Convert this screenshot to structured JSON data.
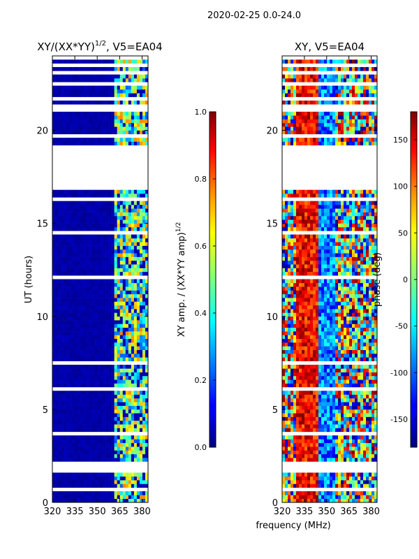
{
  "chart_data": {
    "suptitle": "2020-02-25 0.0-24.0",
    "xlabel": "frequency (MHz)",
    "panels": [
      {
        "type": "heatmap",
        "title": "XY/(XX*YY)",
        "title_sup": "1/2",
        "title_suffix": ", V5=EA04",
        "ylabel": "UT (hours)",
        "xlim": [
          320,
          384
        ],
        "ylim": [
          0,
          24
        ],
        "xticks": [
          "320",
          "335",
          "350",
          "365",
          "380"
        ],
        "yticks": [
          "0",
          "5",
          "10",
          "15",
          "20"
        ],
        "colormap": "jet",
        "colorbar": {
          "label": "XY amp. / (XX*YY amp)",
          "label_sup": "1/2",
          "range": [
            0.0,
            1.0
          ],
          "ticks": [
            "0.0",
            "0.2",
            "0.4",
            "0.6",
            "0.8",
            "1.0"
          ]
        }
      },
      {
        "type": "heatmap",
        "title": "XY, V5=EA04",
        "xlim": [
          320,
          384
        ],
        "ylim": [
          0,
          24
        ],
        "xticks": [
          "320",
          "335",
          "350",
          "365",
          "380"
        ],
        "yticks": [
          "0",
          "5",
          "10",
          "15",
          "20"
        ],
        "colormap": "jet",
        "colorbar": {
          "label": "phase (deg)",
          "range": [
            -180,
            180
          ],
          "ticks": [
            "-150",
            "-100",
            "-50",
            "0",
            "50",
            "100",
            "150"
          ]
        }
      }
    ],
    "flagged_ut_hours": [
      [
        16.85,
        19.3
      ],
      [
        1.7,
        2.3
      ]
    ]
  }
}
